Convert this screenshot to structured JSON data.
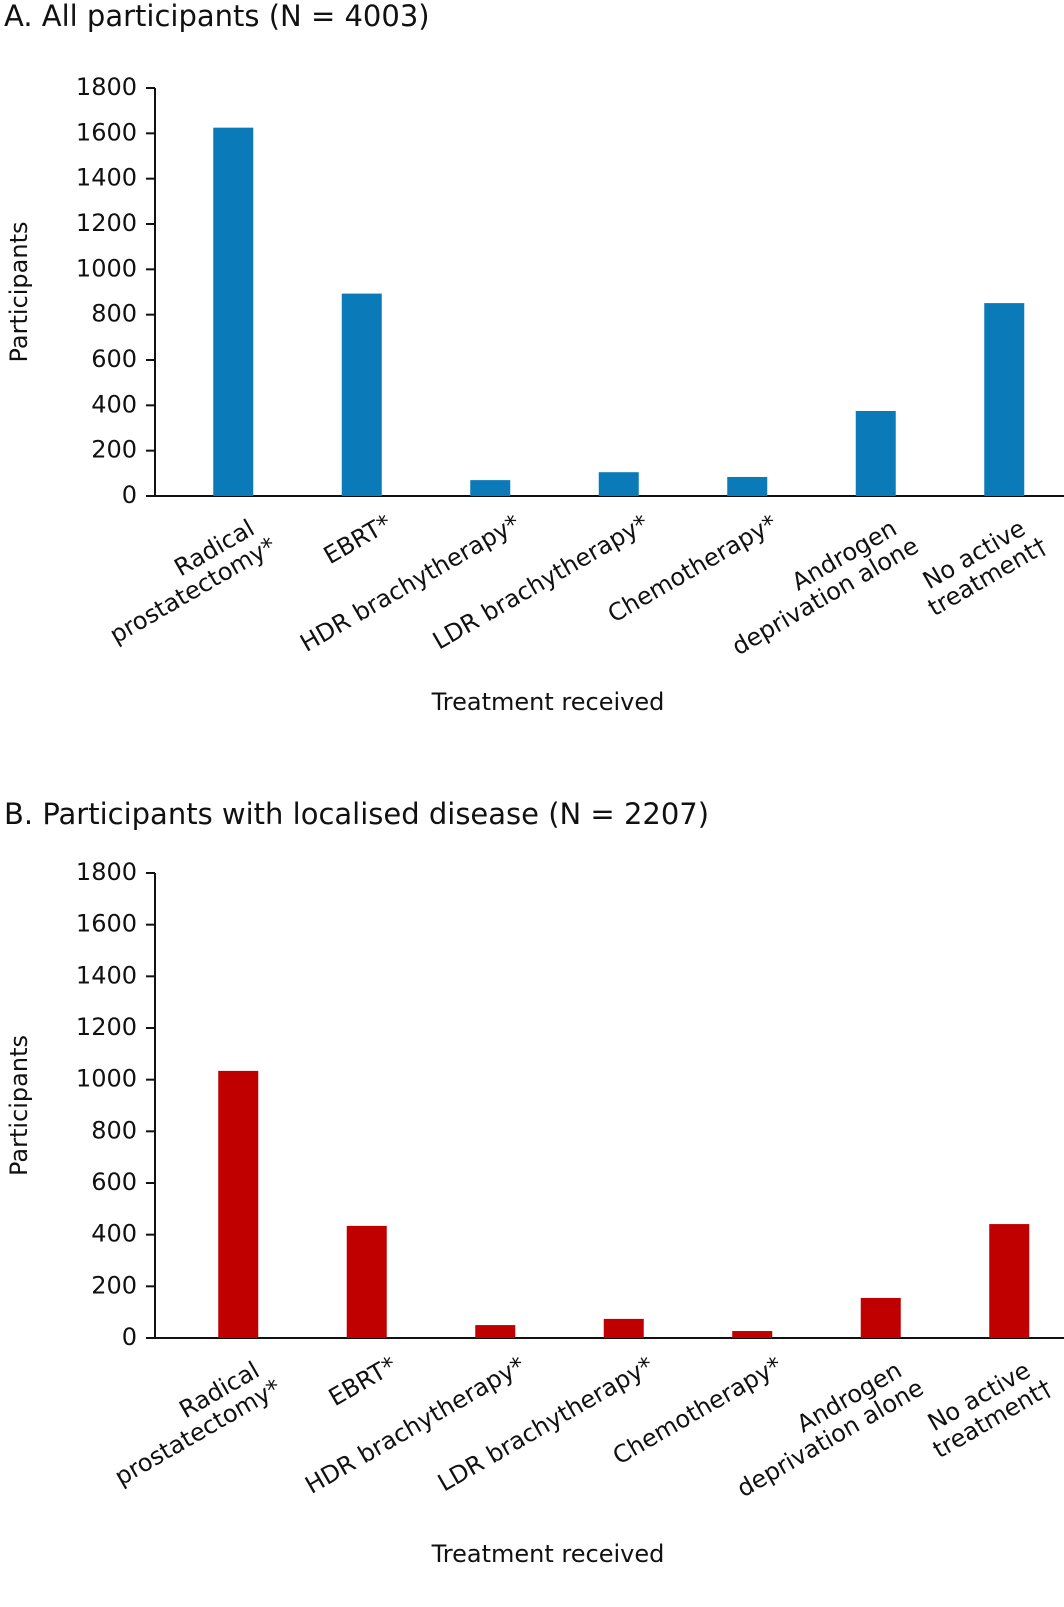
{
  "chart_data": [
    {
      "type": "bar",
      "title": "A. All participants (N = 4003)",
      "x_label": "Treatment received",
      "y_label": "Participants",
      "categories": [
        [
          "Radical",
          "prostatectomy*"
        ],
        [
          "EBRT*"
        ],
        [
          "HDR brachytherapy*"
        ],
        [
          "LDR brachytherapy*"
        ],
        [
          "Chemotherapy*"
        ],
        [
          "Androgen",
          "deprivation alone"
        ],
        [
          "No active",
          "treatment†"
        ]
      ],
      "values": [
        1625,
        893,
        70,
        105,
        84,
        375,
        851
      ],
      "color": "#0a7bb8",
      "ylim": [
        0,
        1800
      ],
      "yticks": [
        0,
        200,
        400,
        600,
        800,
        1000,
        1200,
        1400,
        1600,
        1800
      ],
      "grid": false
    },
    {
      "type": "bar",
      "title": "B. Participants with localised disease (N = 2207)",
      "x_label": "Treatment received",
      "y_label": "Participants",
      "categories": [
        [
          "Radical",
          "prostatectomy*"
        ],
        [
          "EBRT*"
        ],
        [
          "HDR brachytherapy*"
        ],
        [
          "LDR brachytherapy*"
        ],
        [
          "Chemotherapy*"
        ],
        [
          "Androgen",
          "deprivation alone"
        ],
        [
          "No active",
          "treatment†"
        ]
      ],
      "values": [
        1034,
        434,
        50,
        74,
        27,
        155,
        441
      ],
      "color": "#c00000",
      "ylim": [
        0,
        1800
      ],
      "yticks": [
        0,
        200,
        400,
        600,
        800,
        1000,
        1200,
        1400,
        1600,
        1800
      ],
      "grid": false
    }
  ]
}
